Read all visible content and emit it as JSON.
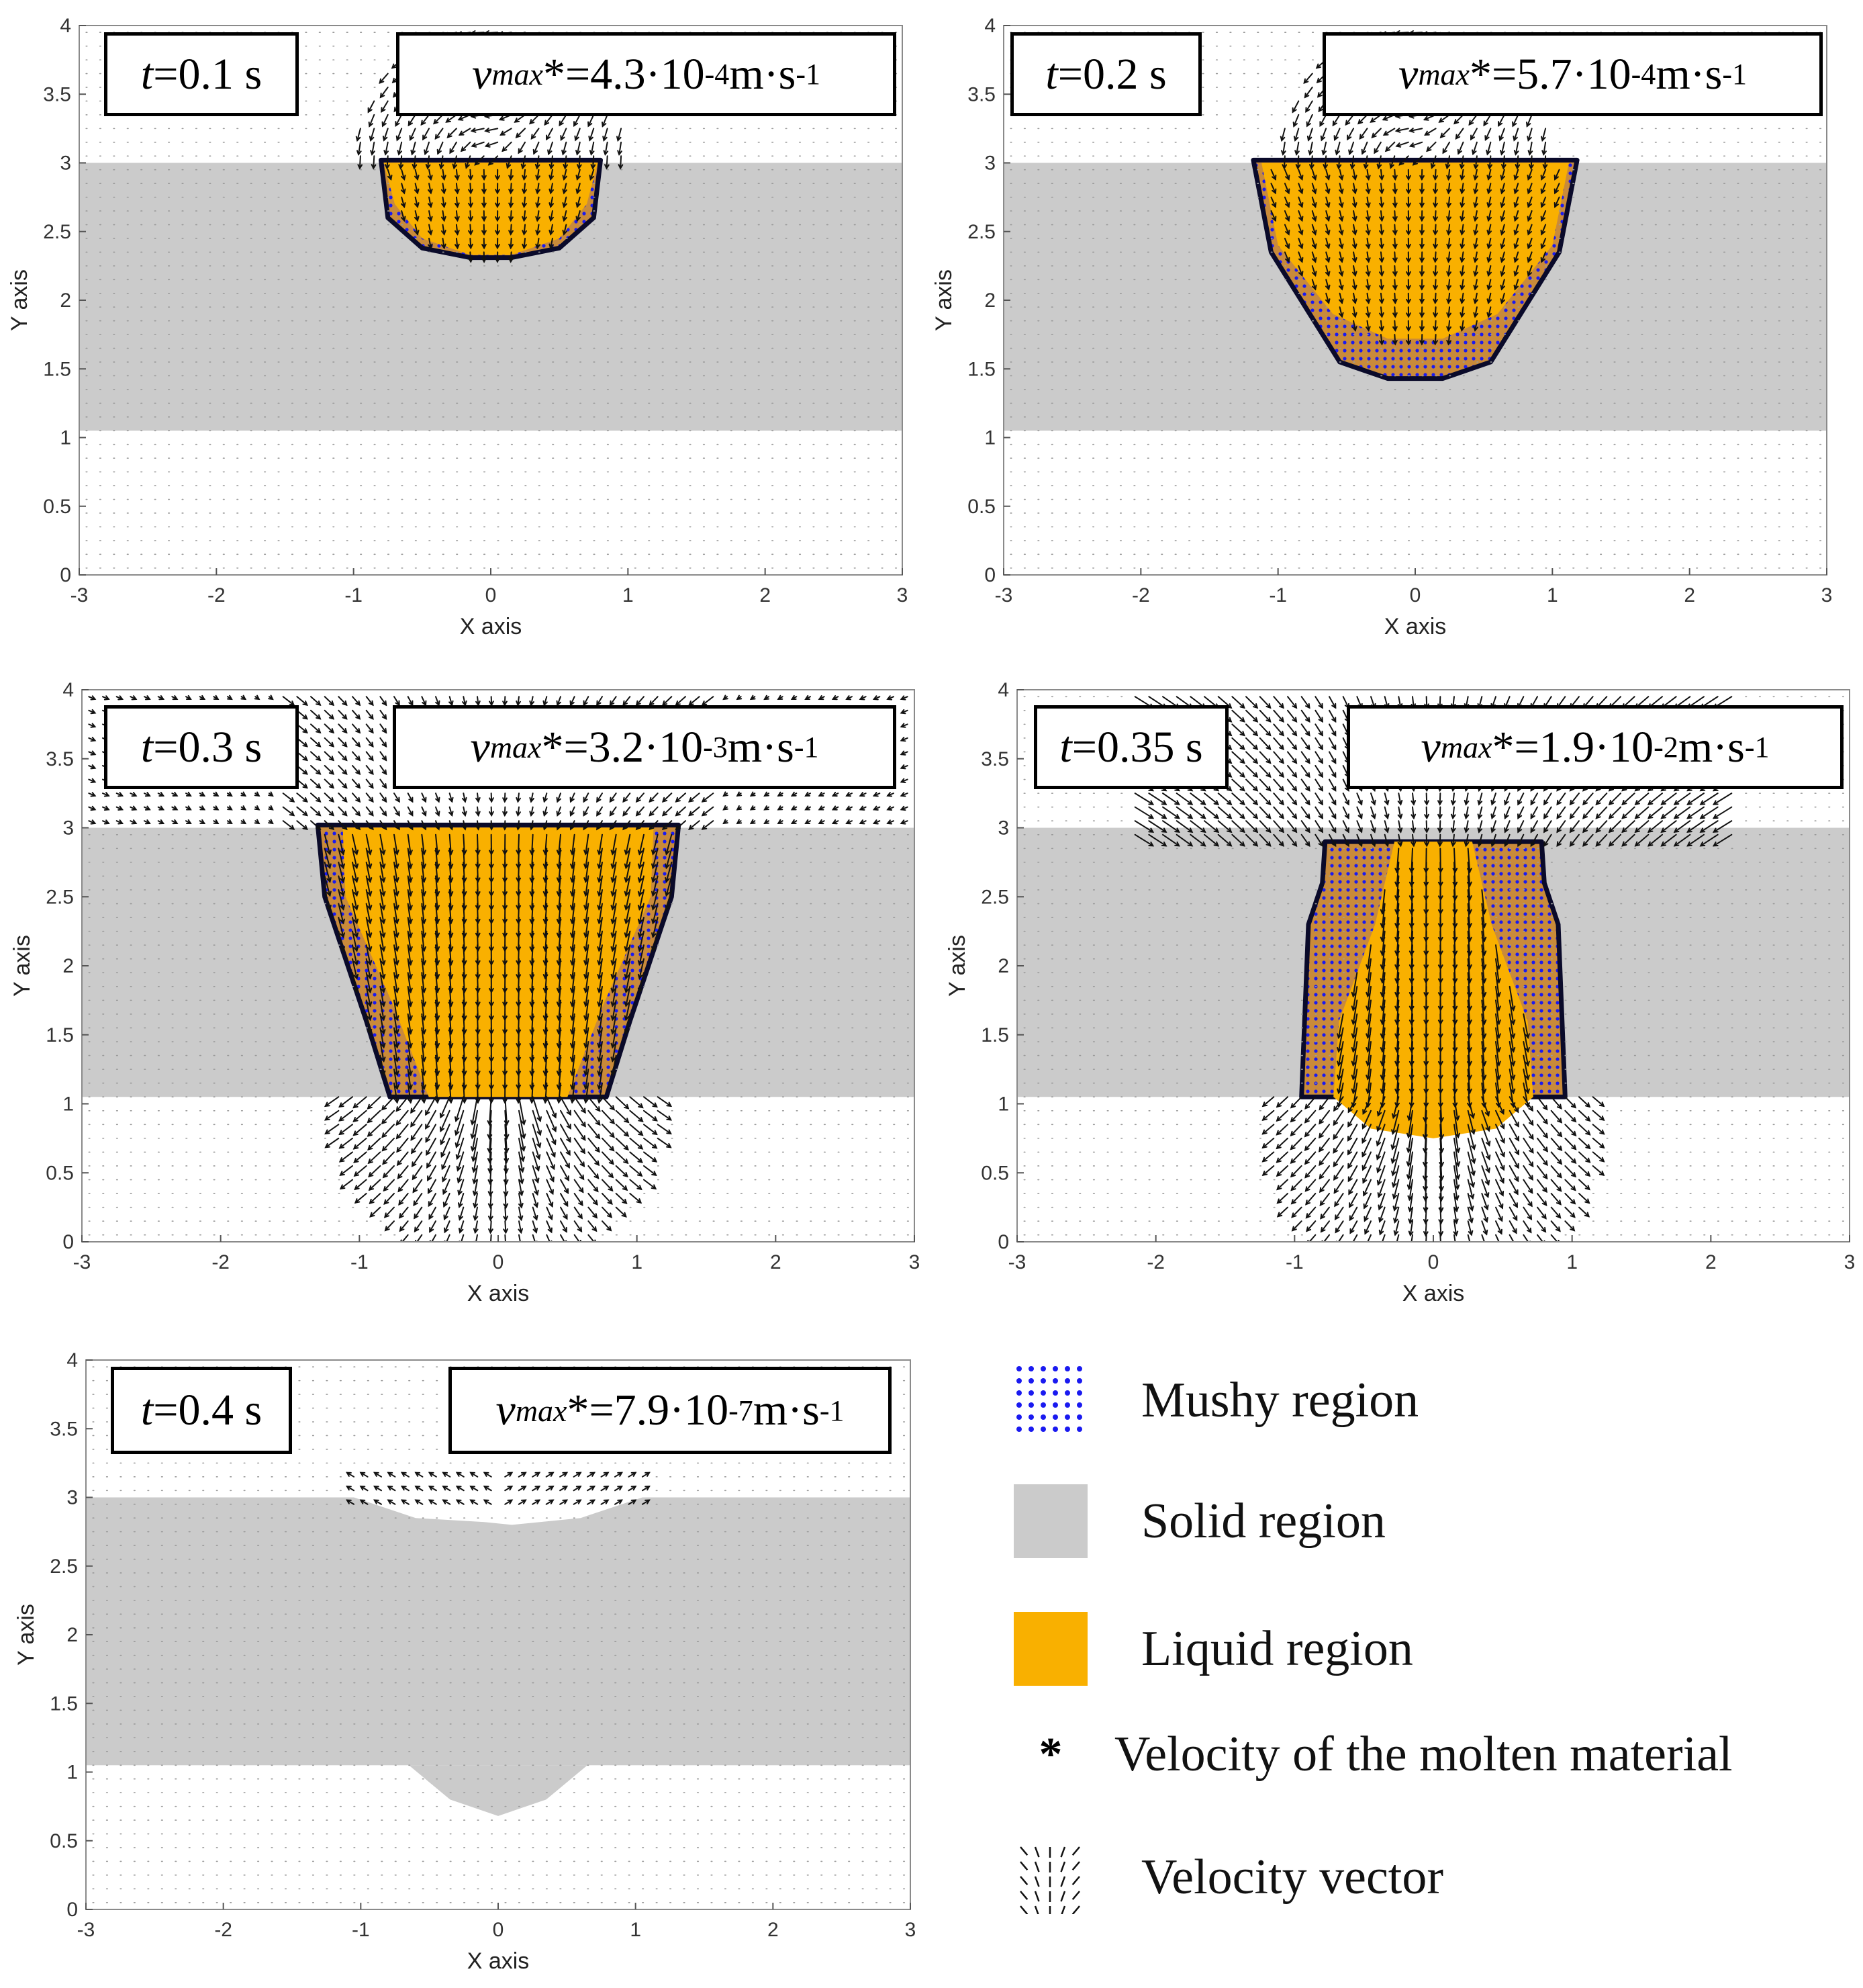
{
  "colors": {
    "solid": "#cbcbcb",
    "liquid": "#f9b000",
    "mushy_dot": "#1a1af0",
    "boundary": "#0a0a2a",
    "vector": "#111111"
  },
  "chart_data": [
    {
      "type": "vector-field",
      "panel": "t01",
      "time_label": "t",
      "time_value": "=0.1 s",
      "vmax_symbol": "v",
      "vmax_sub": "max",
      "vmax_value": "*=4.3·10",
      "vmax_exp": "-4",
      "vmax_unit": " m·s",
      "vmax_unit_exp": "-1",
      "xlabel": "X axis",
      "ylabel": "Y axis",
      "xlim": [
        -3,
        3
      ],
      "ylim": [
        0,
        4
      ],
      "xticks": [
        "-3",
        "-2",
        "-1",
        "0",
        "1",
        "2",
        "3"
      ],
      "yticks": [
        "0",
        "0.5",
        "1",
        "1.5",
        "2",
        "2.5",
        "3",
        "3.5",
        "4"
      ],
      "solid_band": [
        1.05,
        3.0
      ],
      "liquid_pool": [
        [
          -0.78,
          3.0
        ],
        [
          -0.7,
          2.7
        ],
        [
          -0.5,
          2.45
        ],
        [
          -0.15,
          2.33
        ],
        [
          0.15,
          2.33
        ],
        [
          0.5,
          2.45
        ],
        [
          0.7,
          2.7
        ],
        [
          0.78,
          3.0
        ]
      ],
      "mushy_outer": [
        [
          -0.8,
          3.02
        ],
        [
          -0.75,
          2.6
        ],
        [
          -0.5,
          2.38
        ],
        [
          -0.15,
          2.31
        ],
        [
          0.15,
          2.31
        ],
        [
          0.5,
          2.38
        ],
        [
          0.75,
          2.6
        ],
        [
          0.8,
          3.02
        ]
      ],
      "vector_mode": "surface-vortex"
    },
    {
      "type": "vector-field",
      "panel": "t02",
      "time_label": "t",
      "time_value": "=0.2 s",
      "vmax_symbol": "v",
      "vmax_sub": "max",
      "vmax_value": "*=5.7·10",
      "vmax_exp": "-4",
      "vmax_unit": " m·s",
      "vmax_unit_exp": "-1",
      "xlabel": "X axis",
      "ylabel": "Y axis",
      "xlim": [
        -3,
        3
      ],
      "ylim": [
        0,
        4
      ],
      "xticks": [
        "-3",
        "-2",
        "-1",
        "0",
        "1",
        "2",
        "3"
      ],
      "yticks": [
        "0",
        "0.5",
        "1",
        "1.5",
        "2",
        "2.5",
        "3",
        "3.5",
        "4"
      ],
      "solid_band": [
        1.05,
        3.0
      ],
      "liquid_pool": [
        [
          -1.12,
          3.0
        ],
        [
          -1.0,
          2.4
        ],
        [
          -0.6,
          1.9
        ],
        [
          -0.2,
          1.72
        ],
        [
          0.2,
          1.72
        ],
        [
          0.6,
          1.9
        ],
        [
          1.0,
          2.4
        ],
        [
          1.12,
          3.0
        ]
      ],
      "mushy_outer": [
        [
          -1.18,
          3.02
        ],
        [
          -1.05,
          2.35
        ],
        [
          -0.55,
          1.55
        ],
        [
          -0.2,
          1.43
        ],
        [
          0.2,
          1.43
        ],
        [
          0.55,
          1.55
        ],
        [
          1.05,
          2.35
        ],
        [
          1.18,
          3.02
        ]
      ],
      "vector_mode": "surface-vortex"
    },
    {
      "type": "vector-field",
      "panel": "t03",
      "time_label": "t",
      "time_value": "=0.3 s",
      "vmax_symbol": "v",
      "vmax_sub": "max",
      "vmax_value": "*=3.2·10",
      "vmax_exp": "-3",
      "vmax_unit": " m·s",
      "vmax_unit_exp": "-1",
      "xlabel": "X axis",
      "ylabel": "Y axis",
      "xlim": [
        -3,
        3
      ],
      "ylim": [
        0,
        4
      ],
      "xticks": [
        "-3",
        "-2",
        "-1",
        "0",
        "1",
        "2",
        "3"
      ],
      "yticks": [
        "0",
        "0.5",
        "1",
        "1.5",
        "2",
        "2.5",
        "3",
        "3.5",
        "4"
      ],
      "solid_band": [
        1.05,
        3.0
      ],
      "liquid_pool": [
        [
          -1.12,
          3.0
        ],
        [
          -1.1,
          2.5
        ],
        [
          -0.75,
          1.7
        ],
        [
          -0.5,
          1.05
        ],
        [
          0.5,
          1.05
        ],
        [
          0.75,
          1.7
        ],
        [
          1.1,
          2.5
        ],
        [
          1.12,
          3.0
        ]
      ],
      "mushy_outer": [
        [
          -1.3,
          3.02
        ],
        [
          -1.25,
          2.5
        ],
        [
          -0.95,
          1.6
        ],
        [
          -0.78,
          1.05
        ],
        [
          0.78,
          1.05
        ],
        [
          0.95,
          1.6
        ],
        [
          1.25,
          2.5
        ],
        [
          1.3,
          3.02
        ]
      ],
      "vector_mode": "downward-jet"
    },
    {
      "type": "vector-field",
      "panel": "t035",
      "time_label": "t",
      "time_value": "=0.35 s",
      "vmax_symbol": "v",
      "vmax_sub": "max",
      "vmax_value": "*=1.9·10",
      "vmax_exp": "-2",
      "vmax_unit": " m·s",
      "vmax_unit_exp": "-1",
      "xlabel": "X axis",
      "ylabel": "Y axis",
      "xlim": [
        -3,
        3
      ],
      "ylim": [
        0,
        4
      ],
      "xticks": [
        "-3",
        "-2",
        "-1",
        "0",
        "1",
        "2",
        "3"
      ],
      "yticks": [
        "0",
        "0.5",
        "1",
        "1.5",
        "2",
        "2.5",
        "3",
        "3.5",
        "4"
      ],
      "solid_band": [
        1.05,
        3.0
      ],
      "liquid_pool": [
        [
          -0.28,
          2.9
        ],
        [
          -0.42,
          2.3
        ],
        [
          -0.68,
          1.6
        ],
        [
          -0.72,
          1.05
        ],
        [
          -0.45,
          0.82
        ],
        [
          0.0,
          0.75
        ],
        [
          0.45,
          0.82
        ],
        [
          0.72,
          1.05
        ],
        [
          0.68,
          1.6
        ],
        [
          0.42,
          2.3
        ],
        [
          0.28,
          2.9
        ]
      ],
      "mushy_outer": [
        [
          -0.78,
          2.9
        ],
        [
          -0.8,
          2.6
        ],
        [
          -0.9,
          2.3
        ],
        [
          -0.95,
          1.05
        ],
        [
          0.95,
          1.05
        ],
        [
          0.9,
          2.3
        ],
        [
          0.8,
          2.6
        ],
        [
          0.78,
          2.9
        ]
      ],
      "vector_mode": "strong-jet"
    },
    {
      "type": "vector-field",
      "panel": "t04",
      "time_label": "t",
      "time_value": "=0.4 s",
      "vmax_symbol": "v",
      "vmax_sub": "max",
      "vmax_value": "*=7.9·10",
      "vmax_exp": "-7",
      "vmax_unit": " m·s",
      "vmax_unit_exp": "-1",
      "xlabel": "X axis",
      "ylabel": "Y axis",
      "xlim": [
        -3,
        3
      ],
      "ylim": [
        0,
        4
      ],
      "xticks": [
        "-3",
        "-2",
        "-1",
        "0",
        "1",
        "2",
        "3"
      ],
      "yticks": [
        "0",
        "0.5",
        "1",
        "1.5",
        "2",
        "2.5",
        "3",
        "3.5",
        "4"
      ],
      "solid_band": [
        1.05,
        3.0
      ],
      "solid_bump": [
        [
          -0.65,
          1.05
        ],
        [
          -0.35,
          0.8
        ],
        [
          0.0,
          0.68
        ],
        [
          0.35,
          0.8
        ],
        [
          0.65,
          1.05
        ]
      ],
      "surface_dent": [
        [
          -1.05,
          3.0
        ],
        [
          -0.6,
          2.85
        ],
        [
          -0.1,
          2.82
        ],
        [
          0.1,
          2.8
        ],
        [
          0.6,
          2.85
        ],
        [
          1.05,
          3.0
        ]
      ],
      "vector_mode": "weak-surface"
    }
  ],
  "legend": {
    "mushy": "Mushy region",
    "solid": "Solid region",
    "liquid": "Liquid region",
    "star_symbol": "*",
    "star": "Velocity of the molten material",
    "vector": "Velocity vector"
  }
}
